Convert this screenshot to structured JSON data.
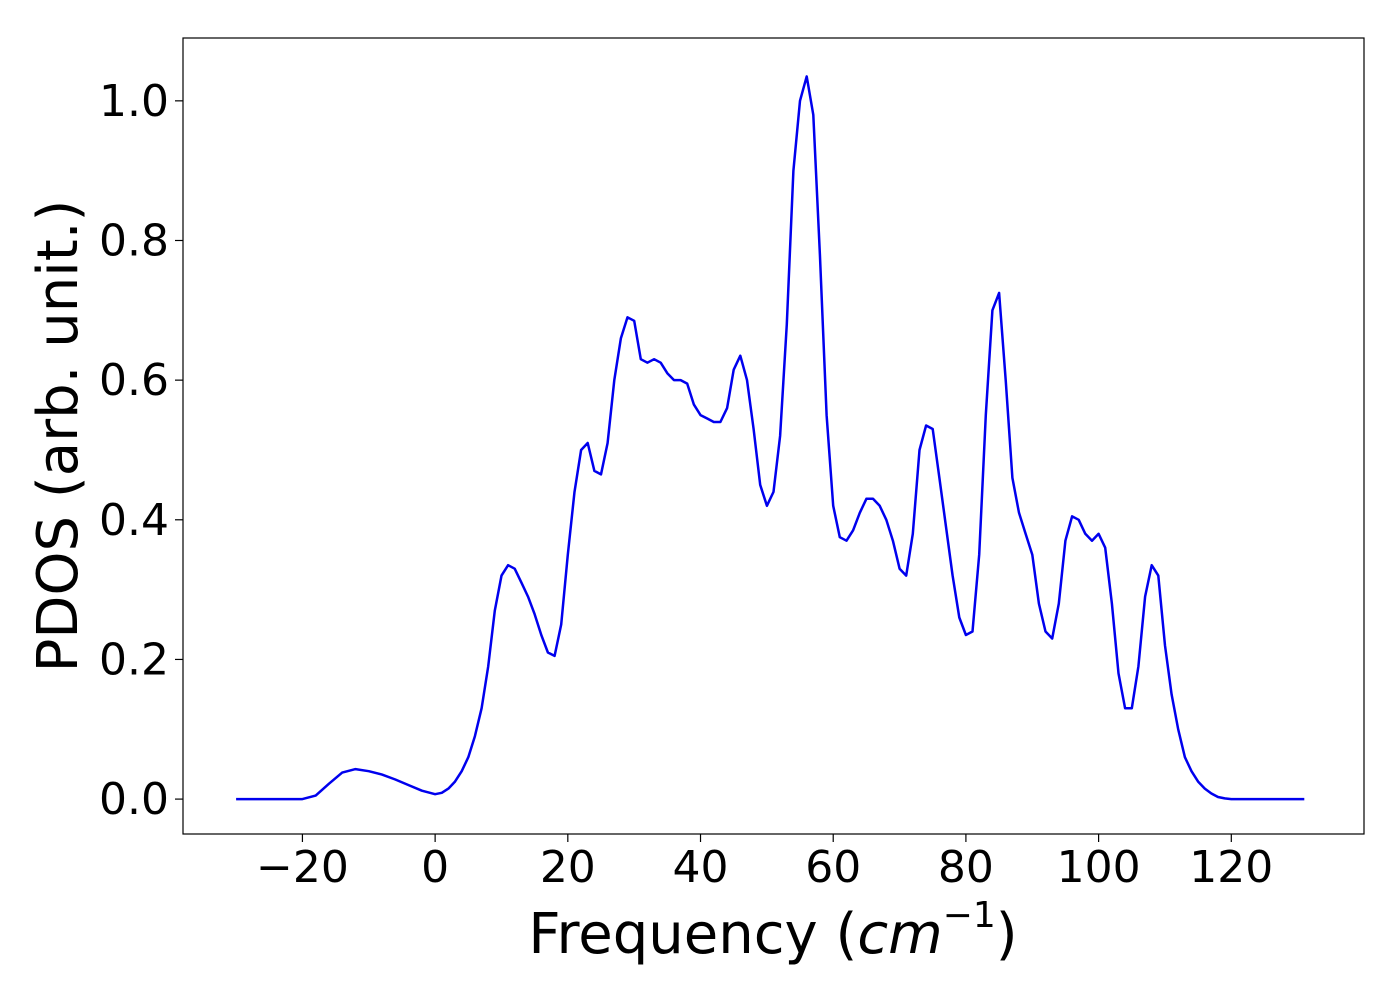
{
  "chart_data": {
    "type": "line",
    "title": "",
    "xlabel": "Frequency (cm⁻¹)",
    "xlabel_parts": {
      "prefix": "Frequency (",
      "unit": "cm",
      "exponent": "−1",
      "suffix": ")"
    },
    "ylabel": "PDOS (arb. unit.)",
    "xlim": [
      -38,
      140
    ],
    "ylim": [
      -0.05,
      1.09
    ],
    "xticks": [
      -20,
      0,
      20,
      40,
      60,
      80,
      100,
      120
    ],
    "xtick_labels": [
      "−20",
      "0",
      "20",
      "40",
      "60",
      "80",
      "100",
      "120"
    ],
    "yticks": [
      0.0,
      0.2,
      0.4,
      0.6,
      0.8,
      1.0
    ],
    "ytick_labels": [
      "0.0",
      "0.2",
      "0.4",
      "0.6",
      "0.8",
      "1.0"
    ],
    "grid": false,
    "legend": false,
    "series": [
      {
        "color": "#0000ee",
        "x": [
          -30,
          -25,
          -20,
          -18,
          -16,
          -14,
          -12,
          -10,
          -8,
          -6,
          -4,
          -2,
          0,
          1,
          2,
          3,
          4,
          5,
          6,
          7,
          8,
          9,
          10,
          11,
          12,
          13,
          14,
          15,
          16,
          17,
          18,
          19,
          20,
          21,
          22,
          23,
          24,
          25,
          26,
          27,
          28,
          29,
          30,
          31,
          32,
          33,
          34,
          35,
          36,
          37,
          38,
          39,
          40,
          41,
          42,
          43,
          44,
          45,
          46,
          47,
          48,
          49,
          50,
          51,
          52,
          53,
          54,
          55,
          56,
          57,
          58,
          59,
          60,
          61,
          62,
          63,
          64,
          65,
          66,
          67,
          68,
          69,
          70,
          71,
          72,
          73,
          74,
          75,
          76,
          77,
          78,
          79,
          80,
          81,
          82,
          83,
          84,
          85,
          86,
          87,
          88,
          89,
          90,
          91,
          92,
          93,
          94,
          95,
          96,
          97,
          98,
          99,
          100,
          101,
          102,
          103,
          104,
          105,
          106,
          107,
          108,
          109,
          110,
          111,
          112,
          113,
          114,
          115,
          116,
          117,
          118,
          119,
          120,
          125,
          131
        ],
        "values": [
          0.0,
          0.0,
          0.0,
          0.005,
          0.022,
          0.038,
          0.043,
          0.04,
          0.035,
          0.028,
          0.02,
          0.012,
          0.007,
          0.009,
          0.015,
          0.025,
          0.04,
          0.06,
          0.09,
          0.13,
          0.19,
          0.27,
          0.32,
          0.335,
          0.33,
          0.31,
          0.29,
          0.265,
          0.235,
          0.21,
          0.205,
          0.25,
          0.35,
          0.44,
          0.5,
          0.51,
          0.47,
          0.465,
          0.51,
          0.6,
          0.66,
          0.69,
          0.685,
          0.63,
          0.625,
          0.63,
          0.625,
          0.61,
          0.6,
          0.6,
          0.595,
          0.565,
          0.55,
          0.545,
          0.54,
          0.54,
          0.56,
          0.615,
          0.635,
          0.6,
          0.53,
          0.45,
          0.42,
          0.44,
          0.52,
          0.68,
          0.9,
          1.0,
          1.035,
          0.98,
          0.78,
          0.55,
          0.42,
          0.375,
          0.37,
          0.385,
          0.41,
          0.43,
          0.43,
          0.42,
          0.4,
          0.37,
          0.33,
          0.32,
          0.38,
          0.5,
          0.535,
          0.53,
          0.46,
          0.39,
          0.32,
          0.26,
          0.235,
          0.24,
          0.35,
          0.55,
          0.7,
          0.725,
          0.6,
          0.46,
          0.41,
          0.38,
          0.35,
          0.28,
          0.24,
          0.23,
          0.28,
          0.37,
          0.405,
          0.4,
          0.38,
          0.37,
          0.38,
          0.36,
          0.28,
          0.18,
          0.13,
          0.13,
          0.19,
          0.29,
          0.335,
          0.32,
          0.22,
          0.15,
          0.1,
          0.06,
          0.04,
          0.025,
          0.015,
          0.008,
          0.003,
          0.001,
          0.0,
          0.0,
          0.0
        ]
      }
    ]
  }
}
